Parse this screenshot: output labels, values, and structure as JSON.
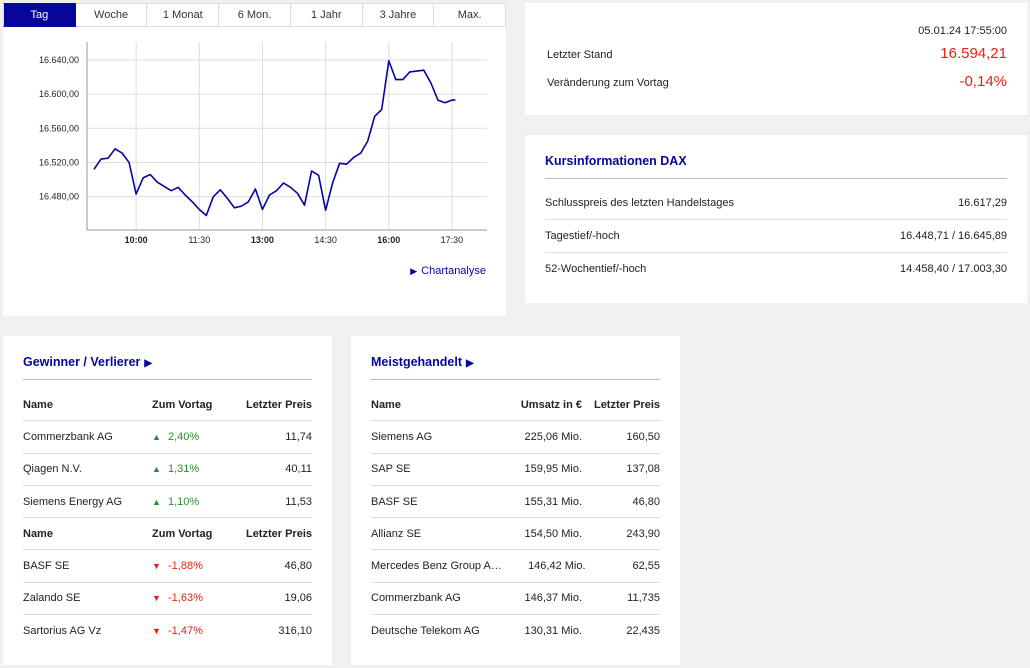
{
  "tabs": [
    "Tag",
    "Woche",
    "1 Monat",
    "6 Mon.",
    "1 Jahr",
    "3 Jahre",
    "Max."
  ],
  "active_tab": "Tag",
  "chart_link": "Chartanalyse",
  "chart_data": {
    "type": "line",
    "x": [
      "09:00",
      "09:10",
      "09:20",
      "09:30",
      "09:40",
      "09:50",
      "10:00",
      "10:10",
      "10:20",
      "10:30",
      "10:40",
      "10:50",
      "11:00",
      "11:10",
      "11:20",
      "11:30",
      "11:40",
      "11:50",
      "12:00",
      "12:10",
      "12:20",
      "12:30",
      "12:40",
      "12:50",
      "13:00",
      "13:10",
      "13:20",
      "13:30",
      "13:40",
      "13:50",
      "14:00",
      "14:10",
      "14:20",
      "14:30",
      "14:40",
      "14:50",
      "15:00",
      "15:10",
      "15:20",
      "15:30",
      "15:40",
      "15:50",
      "16:00",
      "16:10",
      "16:20",
      "16:30",
      "16:40",
      "16:50",
      "17:00",
      "17:10",
      "17:20",
      "17:30",
      "17:35"
    ],
    "values": [
      16512,
      16524,
      16525,
      16536,
      16531,
      16520,
      16483,
      16502,
      16506,
      16497,
      16492,
      16487,
      16491,
      16482,
      16474,
      16465,
      16458,
      16480,
      16488,
      16478,
      16467,
      16469,
      16474,
      16489,
      16465,
      16482,
      16487,
      16496,
      16491,
      16484,
      16470,
      16510,
      16505,
      16464,
      16496,
      16519,
      16518,
      16526,
      16531,
      16545,
      16574,
      16582,
      16639,
      16617,
      16617,
      16626,
      16627,
      16628,
      16613,
      16593,
      16590,
      16593,
      16593
    ],
    "xticks": [
      "10:00",
      "11:30",
      "13:00",
      "14:30",
      "16:00",
      "17:30"
    ],
    "yticks": [
      "16.480,00",
      "16.520,00",
      "16.560,00",
      "16.600,00",
      "16.640,00"
    ],
    "ytick_values": [
      16480,
      16520,
      16560,
      16600,
      16640
    ],
    "ylim": [
      16441,
      16661
    ],
    "xlim": [
      "08:50",
      "18:20"
    ],
    "grid": true,
    "line_color": "#06069a"
  },
  "quote": {
    "timestamp": "05.01.24 17:55:00",
    "last_label": "Letzter Stand",
    "last_value": "16.594,21",
    "change_label": "Veränderung zum Vortag",
    "change_value": "-0,14%",
    "value_color": "#e2231a"
  },
  "kurs": {
    "title": "Kursinformationen DAX",
    "rows": [
      {
        "label": "Schlusspreis des letzten Handelstages",
        "value": "16.617,29"
      },
      {
        "label": "Tagestief/-hoch",
        "value": "16.448,71 / 16.645,89"
      },
      {
        "label": "52-Wochentief/-hoch",
        "value": "14.458,40 / 17.003,30"
      }
    ]
  },
  "gewinner": {
    "title": "Gewinner / Verlierer",
    "headers": [
      "Name",
      "Zum Vortag",
      "Letzter Preis"
    ],
    "winners": [
      {
        "name": "Commerzbank AG",
        "change": "2,40%",
        "price": "11,74"
      },
      {
        "name": "Qiagen N.V.",
        "change": "1,31%",
        "price": "40,11"
      },
      {
        "name": "Siemens Energy AG",
        "change": "1,10%",
        "price": "11,53"
      }
    ],
    "losers": [
      {
        "name": "BASF SE",
        "change": "-1,88%",
        "price": "46,80"
      },
      {
        "name": "Zalando SE",
        "change": "-1,63%",
        "price": "19,06"
      },
      {
        "name": "Sartorius AG Vz",
        "change": "-1,47%",
        "price": "316,10"
      }
    ],
    "up_color": "#2e8b2e",
    "down_color": "#e2231a"
  },
  "meist": {
    "title": "Meistgehandelt",
    "headers": [
      "Name",
      "Umsatz in €",
      "Letzter Preis"
    ],
    "rows": [
      {
        "name": "Siemens AG",
        "umsatz": "225,06 Mio.",
        "price": "160,50"
      },
      {
        "name": "SAP SE",
        "umsatz": "159,95 Mio.",
        "price": "137,08"
      },
      {
        "name": "BASF SE",
        "umsatz": "155,31 Mio.",
        "price": "46,80"
      },
      {
        "name": "Allianz SE",
        "umsatz": "154,50 Mio.",
        "price": "243,90"
      },
      {
        "name": "Mercedes Benz Group AG ...",
        "umsatz": "146,42 Mio.",
        "price": "62,55"
      },
      {
        "name": "Commerzbank AG",
        "umsatz": "146,37 Mio.",
        "price": "11,735"
      },
      {
        "name": "Deutsche Telekom AG",
        "umsatz": "130,31 Mio.",
        "price": "22,435"
      }
    ]
  }
}
